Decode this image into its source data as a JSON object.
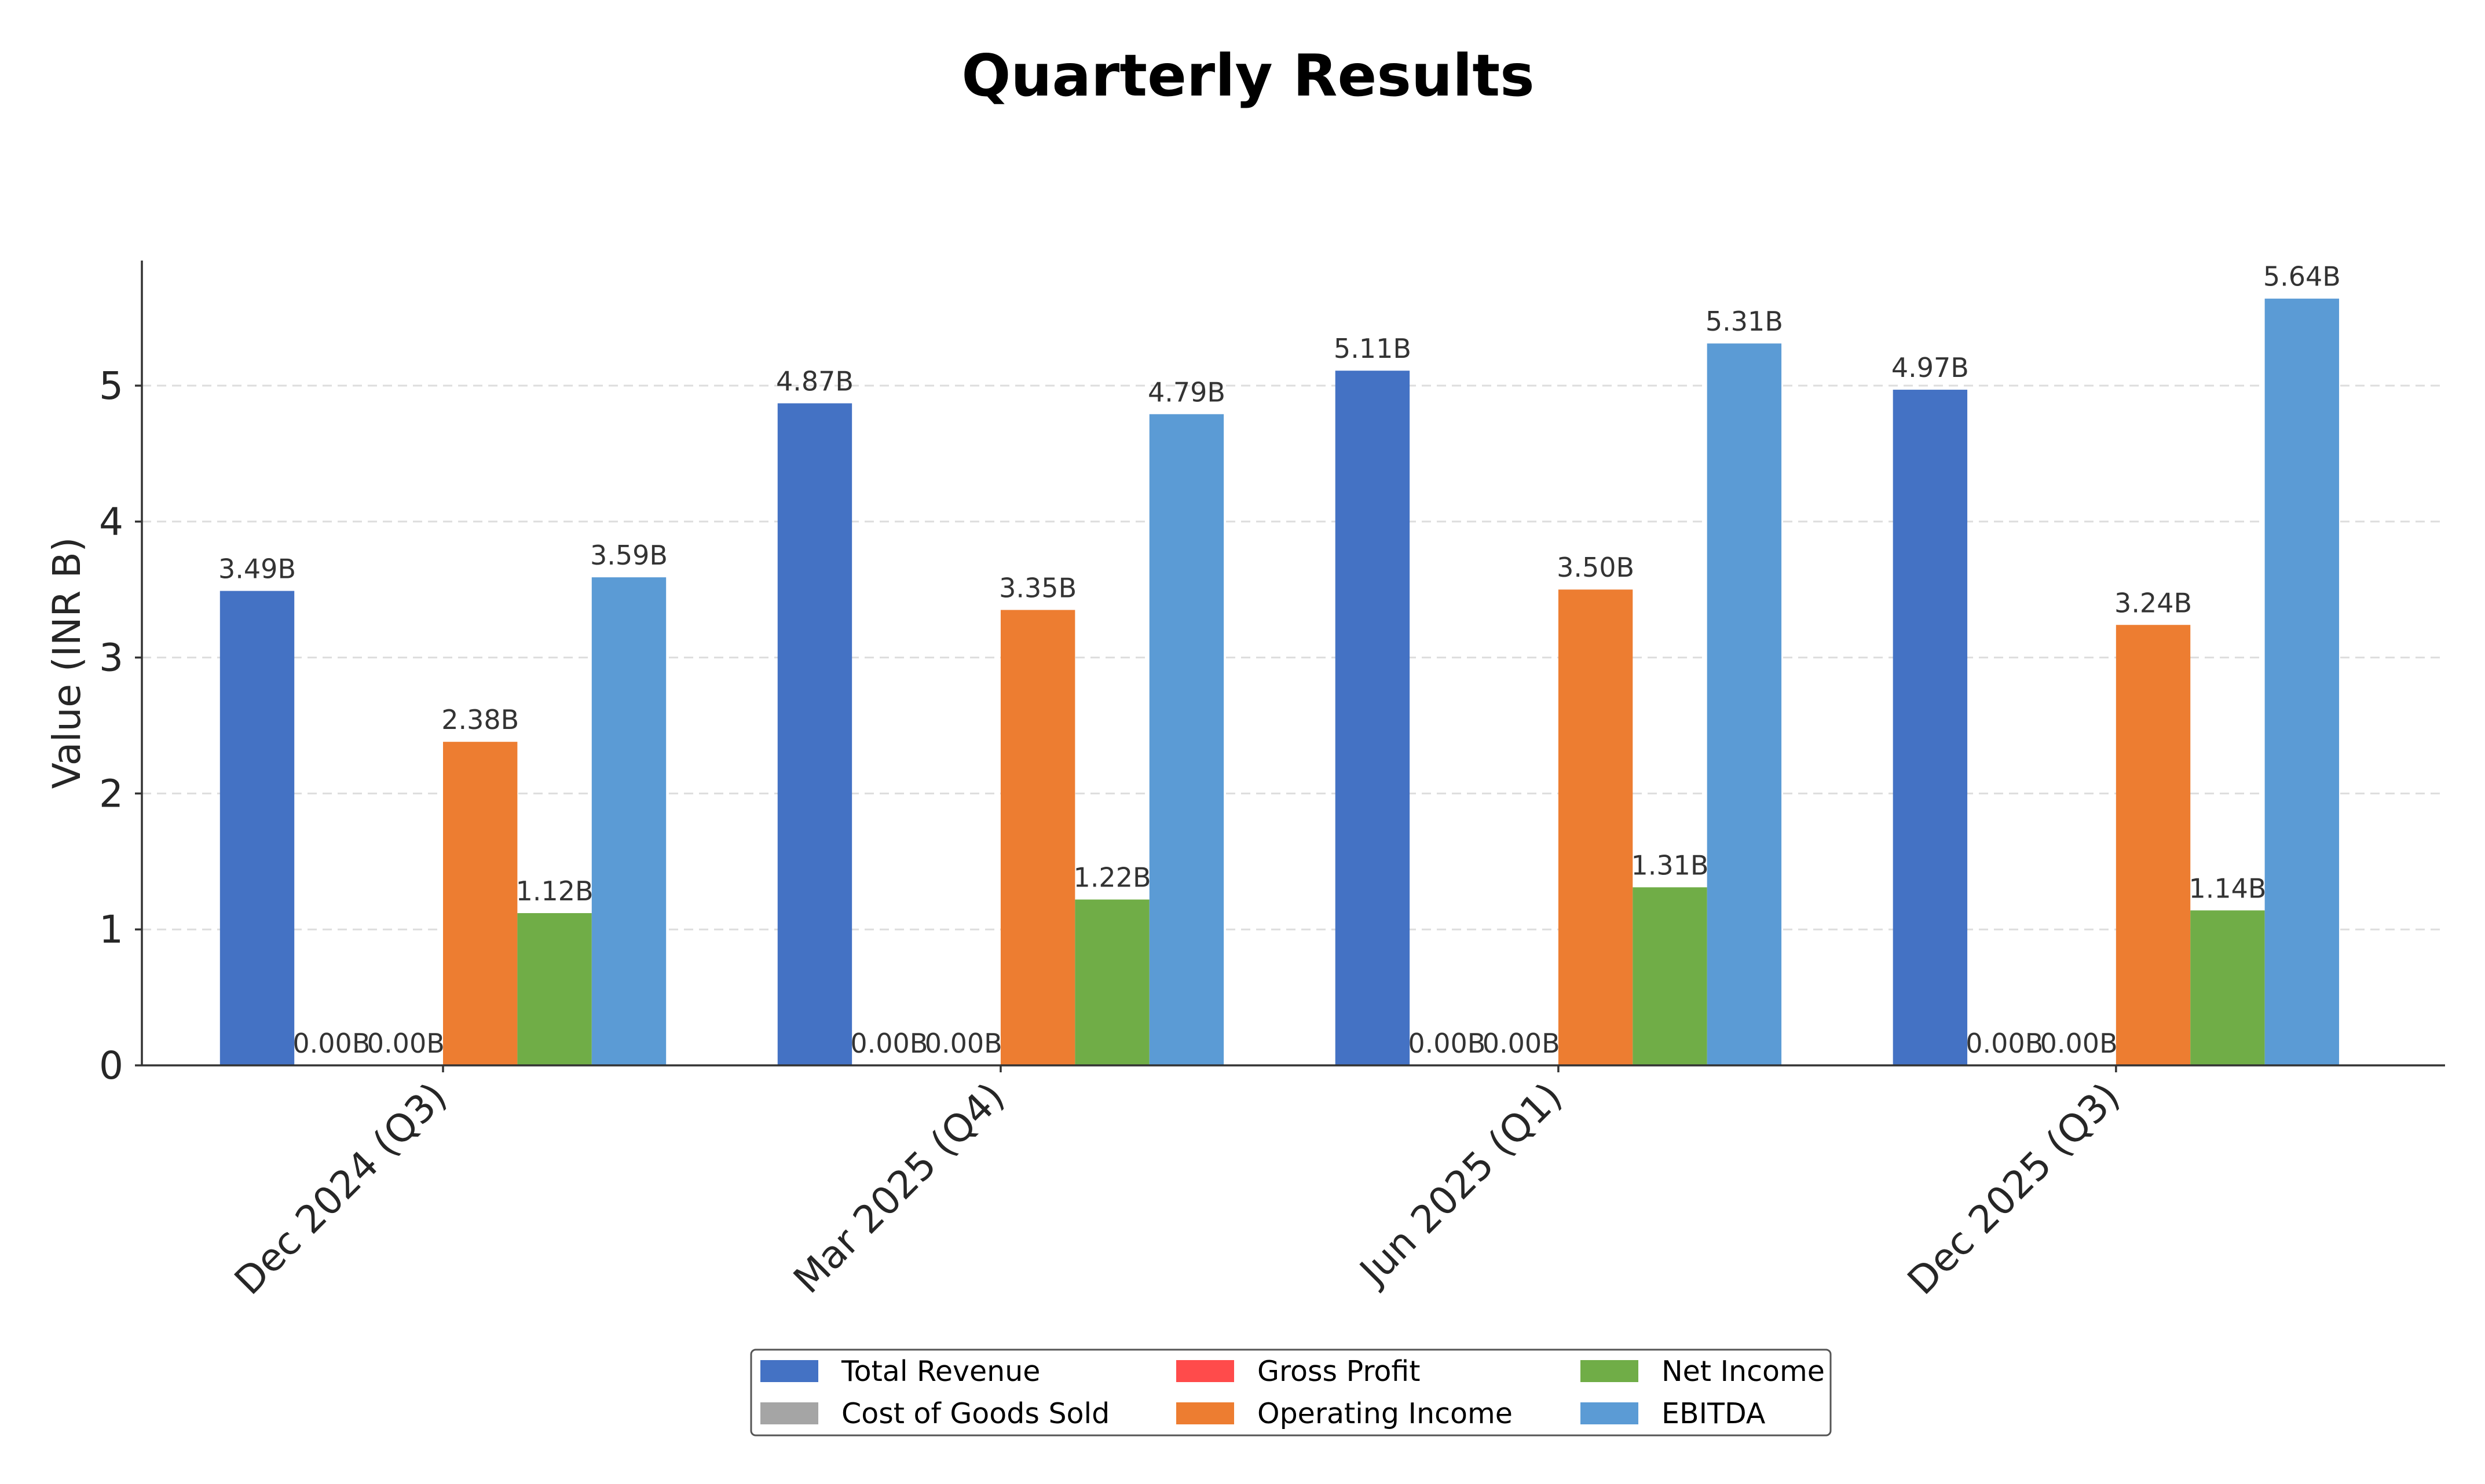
{
  "chart_data": {
    "type": "bar",
    "title": "Quarterly Results",
    "xlabel": "",
    "ylabel": "Value (INR B)",
    "ylim": [
      0,
      5.92
    ],
    "yticks": [
      0,
      1,
      2,
      3,
      4,
      5
    ],
    "grid": "y-dashed",
    "legend_position": "bottom-center",
    "categories": [
      "Dec 2024 (Q3)",
      "Mar 2025 (Q4)",
      "Jun 2025 (Q1)",
      "Dec 2025 (Q3)"
    ],
    "series": [
      {
        "name": "Total Revenue",
        "color": "#4472c4",
        "values": [
          3.49,
          4.87,
          5.11,
          4.97
        ],
        "labels": [
          "3.49B",
          "4.87B",
          "5.11B",
          "4.97B"
        ]
      },
      {
        "name": "Cost of Goods Sold",
        "color": "#a5a5a5",
        "values": [
          0,
          0,
          0,
          0
        ],
        "labels": [
          "0.00B",
          "0.00B",
          "0.00B",
          "0.00B"
        ]
      },
      {
        "name": "Gross Profit",
        "color": "#ff4b4b",
        "values": [
          0,
          0,
          0,
          0
        ],
        "labels": [
          "0.00B",
          "0.00B",
          "0.00B",
          "0.00B"
        ]
      },
      {
        "name": "Operating Income",
        "color": "#ed7d31",
        "values": [
          2.38,
          3.35,
          3.5,
          3.24
        ],
        "labels": [
          "2.38B",
          "3.35B",
          "3.50B",
          "3.24B"
        ]
      },
      {
        "name": "Net Income",
        "color": "#70ad47",
        "values": [
          1.12,
          1.22,
          1.31,
          1.14
        ],
        "labels": [
          "1.12B",
          "1.22B",
          "1.31B",
          "1.14B"
        ]
      },
      {
        "name": "EBITDA",
        "color": "#5b9bd5",
        "values": [
          3.59,
          4.79,
          5.31,
          5.64
        ],
        "labels": [
          "3.59B",
          "4.79B",
          "5.31B",
          "5.64B"
        ]
      }
    ]
  }
}
